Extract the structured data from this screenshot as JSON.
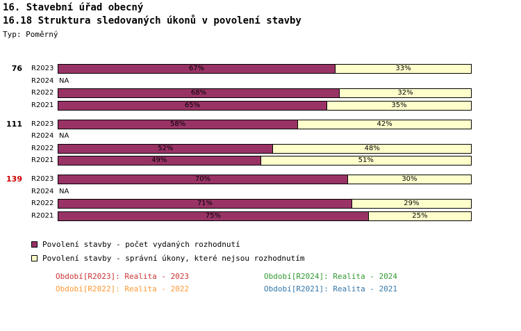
{
  "header": {
    "title1": "16. Stavební úřad obecný",
    "title2": "16.18 Struktura sledovaných úkonů v povolení stavby",
    "type_label": "Typ: Poměrný"
  },
  "colors": {
    "series1": "#993366",
    "series2": "#FFFFCC",
    "bar_border": "#000000",
    "highlight_group": "#CC0000",
    "text": "#000000"
  },
  "chart_data": {
    "type": "bar",
    "orientation": "horizontal",
    "stacked": true,
    "unit": "%",
    "xlim": [
      0,
      100
    ],
    "series_names": [
      "Povolení stavby - počet vydaných rozhodnutí",
      "Povolení stavby - správní úkony, které nejsou rozhodnutím"
    ],
    "groups": [
      {
        "id": "76",
        "highlight": false,
        "rows": [
          {
            "label": "R2023",
            "na": false,
            "values": [
              67,
              33
            ]
          },
          {
            "label": "R2024",
            "na": true,
            "na_text": "NA",
            "values": null
          },
          {
            "label": "R2022",
            "na": false,
            "values": [
              68,
              32
            ]
          },
          {
            "label": "R2021",
            "na": false,
            "values": [
              65,
              35
            ]
          }
        ]
      },
      {
        "id": "111",
        "highlight": false,
        "rows": [
          {
            "label": "R2023",
            "na": false,
            "values": [
              58,
              42
            ]
          },
          {
            "label": "R2024",
            "na": true,
            "na_text": "NA",
            "values": null
          },
          {
            "label": "R2022",
            "na": false,
            "values": [
              52,
              48
            ]
          },
          {
            "label": "R2021",
            "na": false,
            "values": [
              49,
              51
            ]
          }
        ]
      },
      {
        "id": "139",
        "highlight": true,
        "rows": [
          {
            "label": "R2023",
            "na": false,
            "values": [
              70,
              30
            ]
          },
          {
            "label": "R2024",
            "na": true,
            "na_text": "NA",
            "values": null
          },
          {
            "label": "R2022",
            "na": false,
            "values": [
              71,
              29
            ]
          },
          {
            "label": "R2021",
            "na": false,
            "values": [
              75,
              25
            ]
          }
        ]
      }
    ],
    "legend": [
      {
        "label": "Povolení stavby - počet vydaných rozhodnutí",
        "color": "#993366"
      },
      {
        "label": "Povolení stavby - správní úkony, které nejsou rozhodnutím",
        "color": "#FFFFCC"
      }
    ]
  },
  "footer_links": [
    {
      "key": "r2023",
      "label": "Období[R2023]:",
      "value": "Realita - 2023",
      "color": "#CC3333"
    },
    {
      "key": "r2024",
      "label": "Období[R2024]:",
      "value": "Realita - 2024",
      "color": "#339933"
    },
    {
      "key": "r2022",
      "label": "Období[R2022]:",
      "value": "Realita - 2022",
      "color": "#FF9933"
    },
    {
      "key": "r2021",
      "label": "Období[R2021]:",
      "value": "Realita - 2021",
      "color": "#3377AA"
    }
  ]
}
